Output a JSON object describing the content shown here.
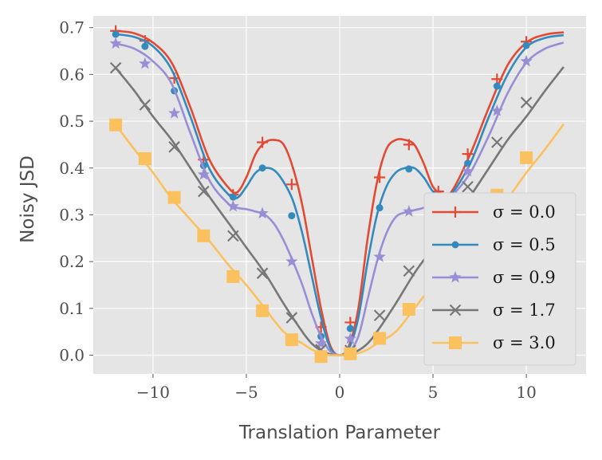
{
  "chart_data": {
    "type": "line",
    "title": "",
    "xlabel": "Translation Parameter",
    "ylabel": "Noisy JSD",
    "xlim": [
      -13.2,
      13.2
    ],
    "ylim": [
      -0.04,
      0.725
    ],
    "xticks": [
      -10,
      -5,
      0,
      5,
      10
    ],
    "xtick_labels": [
      "−10",
      "−5",
      "0",
      "5",
      "10"
    ],
    "yticks": [
      0.0,
      0.1,
      0.2,
      0.3,
      0.4,
      0.5,
      0.6,
      0.7
    ],
    "ytick_labels": [
      "0.0",
      "0.1",
      "0.2",
      "0.3",
      "0.4",
      "0.5",
      "0.6",
      "0.7"
    ],
    "grid": true,
    "legend_position": "lower-right",
    "series": [
      {
        "name": "σ = 0.0",
        "color": "#E24A33",
        "marker": "plus",
        "line": {
          "x": [
            -12,
            -11,
            -10,
            -9,
            -8,
            -7,
            -6,
            -5.5,
            -5,
            -4.5,
            -4,
            -3.5,
            -3,
            -2.5,
            -2,
            -1.5,
            -1,
            -0.5,
            0,
            0.5,
            1,
            1.5,
            2,
            2.5,
            3,
            3.5,
            4,
            4.5,
            5,
            5.5,
            6,
            7,
            8,
            9,
            10,
            11,
            12
          ],
          "y": [
            0.693,
            0.688,
            0.668,
            0.625,
            0.53,
            0.42,
            0.36,
            0.348,
            0.38,
            0.43,
            0.455,
            0.46,
            0.45,
            0.4,
            0.32,
            0.21,
            0.1,
            0.02,
            0.0,
            0.02,
            0.1,
            0.25,
            0.37,
            0.44,
            0.46,
            0.46,
            0.45,
            0.41,
            0.36,
            0.345,
            0.35,
            0.43,
            0.53,
            0.62,
            0.668,
            0.685,
            0.69
          ],
          "markers_x": [
            -12,
            -10.43,
            -8.86,
            -7.29,
            -5.71,
            -4.14,
            -2.57,
            -1.0,
            0.57,
            2.14,
            3.71,
            5.29,
            6.86,
            8.43,
            10.0
          ],
          "markers_y": [
            0.693,
            0.672,
            0.592,
            0.418,
            0.343,
            0.455,
            0.365,
            0.06,
            0.07,
            0.38,
            0.45,
            0.35,
            0.43,
            0.59,
            0.67
          ]
        }
      },
      {
        "name": "σ = 0.5",
        "color": "#348ABD",
        "marker": "circle",
        "line": {
          "x": [
            -12,
            -11,
            -10,
            -9,
            -8,
            -7,
            -6,
            -5.5,
            -5,
            -4.5,
            -4,
            -3.5,
            -3,
            -2.5,
            -2,
            -1.5,
            -1,
            -0.5,
            0,
            0.5,
            1,
            1.5,
            2,
            2.5,
            3,
            3.5,
            4,
            4.5,
            5,
            5.5,
            6,
            7,
            8,
            9,
            10,
            11,
            12
          ],
          "y": [
            0.686,
            0.68,
            0.66,
            0.61,
            0.51,
            0.4,
            0.345,
            0.336,
            0.36,
            0.39,
            0.4,
            0.395,
            0.37,
            0.33,
            0.26,
            0.17,
            0.08,
            0.015,
            0.0,
            0.015,
            0.08,
            0.2,
            0.3,
            0.36,
            0.39,
            0.4,
            0.4,
            0.38,
            0.35,
            0.34,
            0.345,
            0.41,
            0.51,
            0.6,
            0.658,
            0.678,
            0.684
          ],
          "markers_x": [
            -12,
            -10.43,
            -8.86,
            -7.29,
            -5.71,
            -4.14,
            -2.57,
            -1.0,
            0.57,
            2.14,
            3.71,
            5.29,
            6.86,
            8.43,
            10.0
          ],
          "markers_y": [
            0.686,
            0.66,
            0.565,
            0.405,
            0.338,
            0.4,
            0.298,
            0.04,
            0.057,
            0.315,
            0.398,
            0.34,
            0.41,
            0.575,
            0.662
          ]
        }
      },
      {
        "name": "σ = 0.9",
        "color": "#988ED5",
        "marker": "star",
        "line": {
          "x": [
            -12,
            -11,
            -10,
            -9,
            -8,
            -7,
            -6,
            -5.5,
            -5,
            -4.5,
            -4,
            -3.5,
            -3,
            -2.5,
            -2,
            -1.5,
            -1,
            -0.5,
            0,
            0.5,
            1,
            1.5,
            2,
            2.5,
            3,
            3.5,
            4,
            4.5,
            5,
            5.5,
            6,
            7,
            8,
            9,
            10,
            11,
            12
          ],
          "y": [
            0.666,
            0.655,
            0.628,
            0.58,
            0.475,
            0.375,
            0.325,
            0.315,
            0.312,
            0.307,
            0.3,
            0.28,
            0.245,
            0.2,
            0.15,
            0.09,
            0.04,
            0.008,
            0.0,
            0.008,
            0.04,
            0.12,
            0.2,
            0.26,
            0.295,
            0.305,
            0.31,
            0.315,
            0.325,
            0.33,
            0.34,
            0.39,
            0.47,
            0.56,
            0.625,
            0.655,
            0.668
          ],
          "markers_x": [
            -12,
            -10.43,
            -8.86,
            -7.29,
            -5.71,
            -4.14,
            -2.57,
            -1.0,
            0.57,
            2.14,
            3.71,
            5.29,
            6.86,
            8.43,
            10.0
          ],
          "markers_y": [
            0.666,
            0.623,
            0.517,
            0.386,
            0.318,
            0.303,
            0.2,
            0.025,
            0.035,
            0.21,
            0.307,
            0.33,
            0.393,
            0.522,
            0.628
          ]
        }
      },
      {
        "name": "σ = 1.7",
        "color": "#777777",
        "marker": "x",
        "line": {
          "x": [
            -12,
            -11,
            -10,
            -9,
            -8,
            -7,
            -6,
            -5,
            -4,
            -3,
            -2,
            -1.5,
            -1,
            -0.5,
            0,
            0.5,
            1,
            1.5,
            2,
            3,
            4,
            5,
            6,
            7,
            8,
            9,
            10,
            11,
            12
          ],
          "y": [
            0.614,
            0.565,
            0.51,
            0.46,
            0.4,
            0.34,
            0.285,
            0.23,
            0.175,
            0.11,
            0.05,
            0.025,
            0.01,
            0.002,
            0.0,
            0.002,
            0.01,
            0.025,
            0.05,
            0.11,
            0.175,
            0.23,
            0.285,
            0.34,
            0.4,
            0.46,
            0.51,
            0.565,
            0.616
          ],
          "markers_x": [
            -12,
            -10.43,
            -8.86,
            -7.29,
            -5.71,
            -4.14,
            -2.57,
            -1.0,
            0.57,
            2.14,
            3.71,
            5.29,
            6.86,
            8.43,
            10.0
          ],
          "markers_y": [
            0.614,
            0.535,
            0.445,
            0.35,
            0.255,
            0.175,
            0.08,
            0.012,
            0.01,
            0.085,
            0.18,
            0.265,
            0.36,
            0.455,
            0.54
          ]
        }
      },
      {
        "name": "σ = 3.0",
        "color": "#FBC15E",
        "marker": "square",
        "line": {
          "x": [
            -12,
            -11,
            -10,
            -9,
            -8,
            -7,
            -6,
            -5,
            -4,
            -3,
            -2,
            -1.5,
            -1,
            -0.5,
            0,
            0.5,
            1,
            1.5,
            2,
            3,
            4,
            5,
            6,
            7,
            8,
            9,
            10,
            11,
            12
          ],
          "y": [
            0.492,
            0.44,
            0.39,
            0.335,
            0.29,
            0.245,
            0.195,
            0.15,
            0.1,
            0.05,
            0.025,
            0.012,
            0.004,
            0.0,
            0.0,
            0.0,
            0.004,
            0.012,
            0.025,
            0.05,
            0.1,
            0.15,
            0.195,
            0.245,
            0.29,
            0.335,
            0.39,
            0.44,
            0.494
          ],
          "markers_x": [
            -12,
            -10.43,
            -8.86,
            -7.29,
            -5.71,
            -4.14,
            -2.57,
            -1.0,
            0.57,
            2.14,
            3.71,
            5.29,
            6.86,
            8.43,
            10.0
          ],
          "markers_y": [
            0.492,
            0.42,
            0.337,
            0.255,
            0.168,
            0.095,
            0.033,
            -0.003,
            0.003,
            0.036,
            0.098,
            0.178,
            0.255,
            0.342,
            0.422
          ]
        }
      }
    ]
  }
}
